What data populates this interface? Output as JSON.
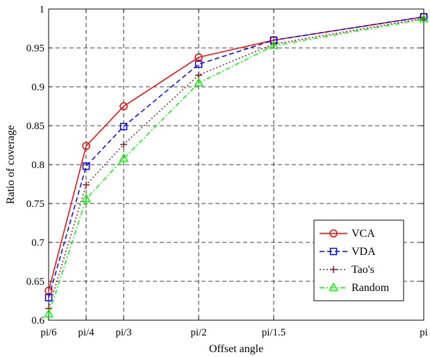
{
  "chart_data": {
    "type": "line",
    "title": "",
    "xlabel": "Offset angle",
    "ylabel": "Ratio of coverage",
    "x_tick_labels": [
      "pi/6",
      "pi/4",
      "pi/3",
      "pi/2",
      "pi/1.5",
      "pi"
    ],
    "x_values": [
      0.5236,
      0.7854,
      1.0472,
      1.5708,
      2.0944,
      3.1416
    ],
    "x_range": [
      0.5236,
      3.1416
    ],
    "ylim": [
      0.6,
      1.0
    ],
    "y_ticks": [
      0.6,
      0.65,
      0.7,
      0.75,
      0.8,
      0.85,
      0.9,
      0.95,
      1
    ],
    "y_tick_labels": [
      "0.6",
      "0.65",
      "0.7",
      "0.75",
      "0.8",
      "0.85",
      "0.9",
      "0.95",
      "1"
    ],
    "grid": true,
    "legend_position": "bottom-right",
    "series": [
      {
        "name": "VCA",
        "color": "#ff0000",
        "dash": "solid",
        "marker": "circle",
        "values": [
          0.638,
          0.824,
          0.875,
          0.938,
          0.96,
          0.99
        ]
      },
      {
        "name": "VDA",
        "color": "#0000ff",
        "dash": "dashed",
        "marker": "square",
        "values": [
          0.629,
          0.798,
          0.849,
          0.929,
          0.96,
          0.99
        ]
      },
      {
        "name": "Tao's",
        "color": "#8b1a1a",
        "dash": "dotted",
        "marker": "plus",
        "values": [
          0.615,
          0.774,
          0.826,
          0.915,
          0.955,
          0.988
        ]
      },
      {
        "name": "Random",
        "color": "#00ff00",
        "dash": "dashdot",
        "marker": "triangle",
        "values": [
          0.608,
          0.756,
          0.808,
          0.905,
          0.953,
          0.987
        ]
      }
    ]
  }
}
